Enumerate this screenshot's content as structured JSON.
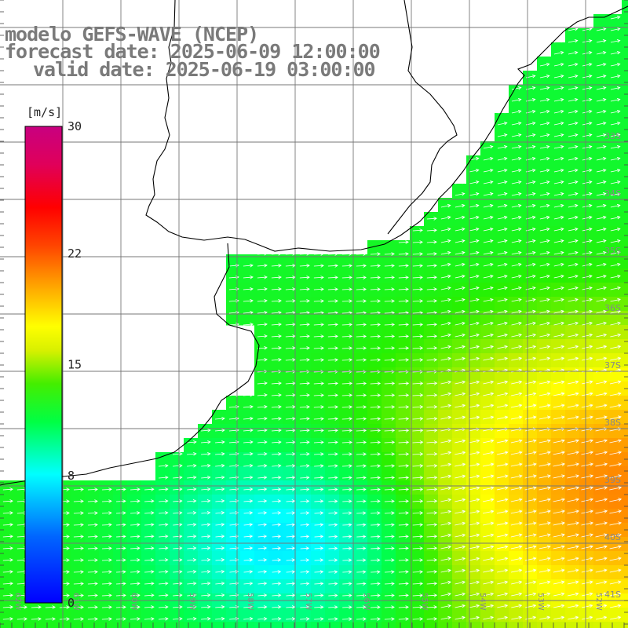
{
  "title": {
    "model": "modelo GEFS-WAVE (NCEP)",
    "forecast": "forecast date: 2025-06-09 12:00:00",
    "valid": "valid date: 2025-06-19 03:00:00"
  },
  "colorbar": {
    "unit": "[m/s]",
    "ticks": [
      {
        "value": 30,
        "label": "30"
      },
      {
        "value": 22,
        "label": "22"
      },
      {
        "value": 15,
        "label": "15"
      },
      {
        "value": 8,
        "label": "8"
      },
      {
        "value": 0,
        "label": "0"
      }
    ],
    "range": [
      0,
      30
    ]
  },
  "lat_labels": [
    "33S",
    "34S",
    "35S",
    "36S",
    "37S",
    "38S",
    "39S",
    "40S",
    "41S"
  ],
  "lon_labels": [
    "62W",
    "61W",
    "60W",
    "59W",
    "58W",
    "57W",
    "56W",
    "55W",
    "54W",
    "53W",
    "52W",
    "51W"
  ],
  "colors": {
    "land": "#ffffff",
    "grid": "#777777",
    "coast": "#000000",
    "arrow": "#ffffff"
  }
}
